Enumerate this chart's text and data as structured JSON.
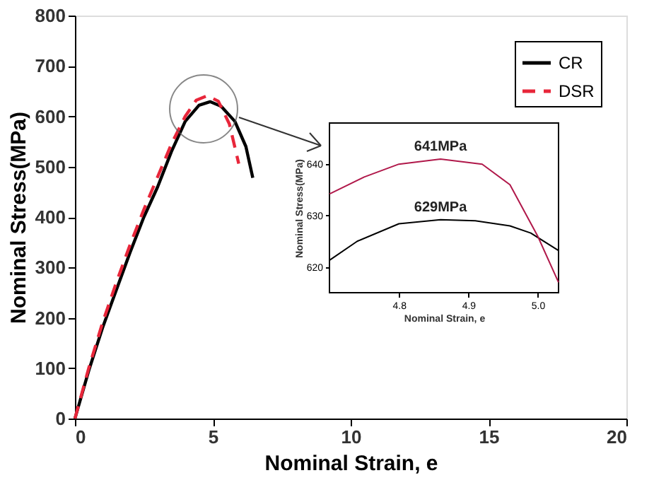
{
  "chart_data": [
    {
      "type": "line",
      "xlabel": "Nominal Strain, e",
      "ylabel": "Nominal Stress(MPa)",
      "xlim": [
        0,
        20
      ],
      "ylim": [
        0,
        800
      ],
      "xticks": [
        0,
        5,
        10,
        15,
        20
      ],
      "yticks": [
        0,
        100,
        200,
        300,
        400,
        500,
        600,
        700,
        800
      ],
      "grid": false,
      "legend": "top right",
      "series": [
        {
          "name": "CR",
          "color": "#000000",
          "line_style": "solid",
          "x": [
            0,
            0.5,
            1,
            1.5,
            2,
            2.5,
            3,
            3.5,
            4,
            4.5,
            4.9,
            5.3,
            5.8,
            6.2,
            6.45
          ],
          "values": [
            0,
            95,
            180,
            255,
            330,
            400,
            460,
            530,
            590,
            622,
            629,
            620,
            590,
            540,
            478
          ]
        },
        {
          "name": "DSR",
          "color": "#e8263a",
          "line_style": "dashed",
          "x": [
            0,
            0.5,
            1,
            1.5,
            2,
            2.5,
            3,
            3.5,
            4,
            4.4,
            4.8,
            5.2,
            5.6,
            5.94
          ],
          "values": [
            0,
            100,
            190,
            270,
            345,
            415,
            480,
            545,
            600,
            632,
            641,
            630,
            585,
            506
          ]
        }
      ]
    },
    {
      "type": "line",
      "xlabel": "Nominal Strain, e",
      "ylabel": "Nominal Stress(MPa)",
      "xlim": [
        4.7,
        5.03
      ],
      "ylim": [
        615,
        648
      ],
      "xticks": [
        {
          "value": 4.8,
          "label": "4.8"
        },
        {
          "value": 4.9,
          "label": "4.9"
        },
        {
          "value": 5.0,
          "label": "5.0"
        }
      ],
      "yticks": [
        620,
        630,
        640
      ],
      "series": [
        {
          "color": "#000000",
          "x": [
            4.7,
            4.74,
            4.8,
            4.86,
            4.91,
            4.96,
            4.99,
            5.03
          ],
          "values": [
            621.3,
            625,
            628.4,
            629.2,
            629,
            628,
            626.6,
            623.2
          ]
        },
        {
          "color": "#b0184a",
          "x": [
            4.7,
            4.75,
            4.8,
            4.86,
            4.92,
            4.96,
            5.0,
            5.03
          ],
          "values": [
            634.2,
            637.5,
            640,
            641,
            640,
            636,
            626,
            617
          ]
        }
      ],
      "annotations": [
        {
          "text": "641MPa",
          "x": 4.86,
          "y": 641
        },
        {
          "text": "629MPa",
          "x": 4.86,
          "y": 629.2
        }
      ]
    }
  ]
}
